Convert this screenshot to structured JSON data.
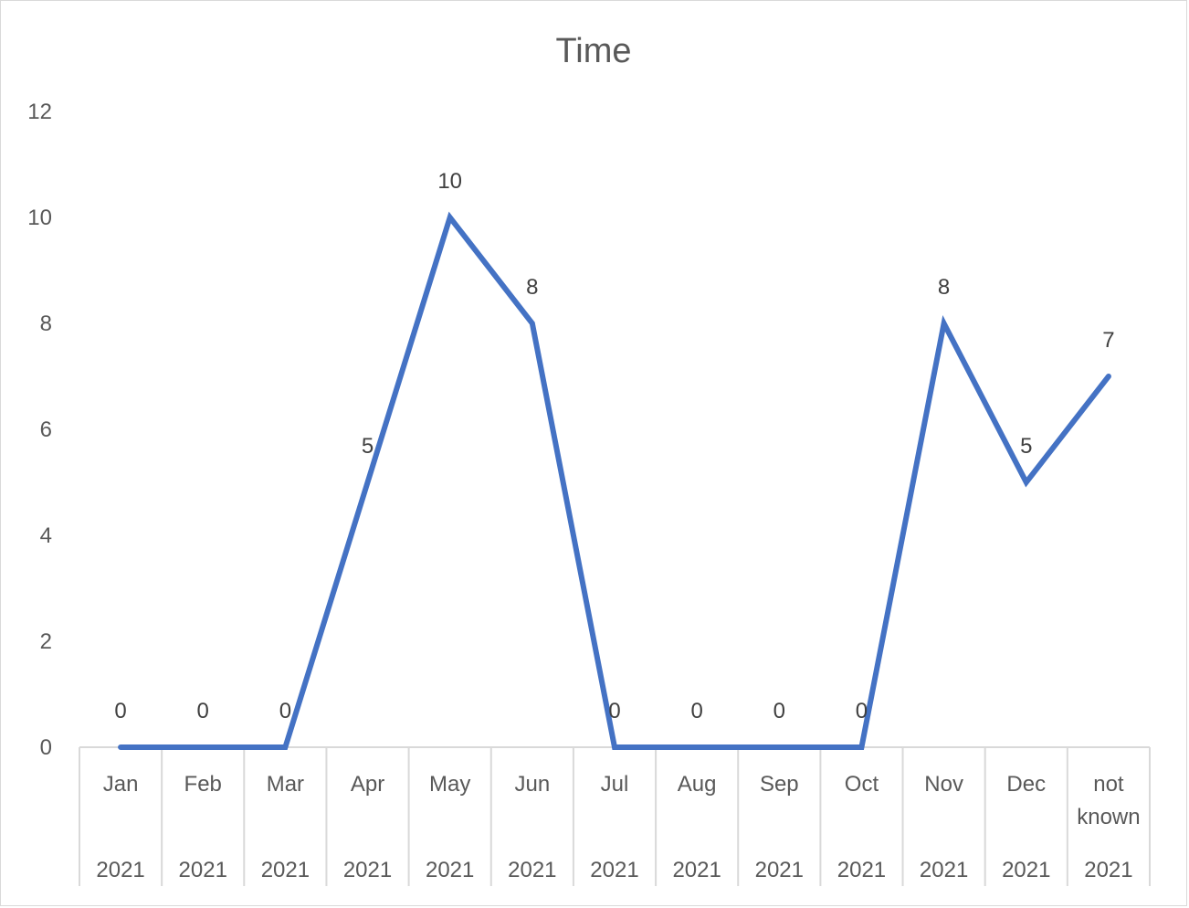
{
  "chart_data": {
    "type": "line",
    "title": "Time",
    "xlabel": "",
    "ylabel": "",
    "ylim": [
      0,
      12
    ],
    "yticks": [
      0,
      2,
      4,
      6,
      8,
      10,
      12
    ],
    "grid": false,
    "legend": "none",
    "categories": [
      {
        "label": "Jan",
        "group": "2021"
      },
      {
        "label": "Feb",
        "group": "2021"
      },
      {
        "label": "Mar",
        "group": "2021"
      },
      {
        "label": "Apr",
        "group": "2021"
      },
      {
        "label": "May",
        "group": "2021"
      },
      {
        "label": "Jun",
        "group": "2021"
      },
      {
        "label": "Jul",
        "group": "2021"
      },
      {
        "label": "Aug",
        "group": "2021"
      },
      {
        "label": "Sep",
        "group": "2021"
      },
      {
        "label": "Oct",
        "group": "2021"
      },
      {
        "label": "Nov",
        "group": "2021"
      },
      {
        "label": "Dec",
        "group": "2021"
      },
      {
        "label": "not known",
        "group": "2021"
      }
    ],
    "series": [
      {
        "values": [
          0,
          0,
          0,
          5,
          10,
          8,
          0,
          0,
          0,
          0,
          8,
          5,
          7
        ],
        "color": "#4472c4"
      }
    ],
    "data_labels": true
  }
}
